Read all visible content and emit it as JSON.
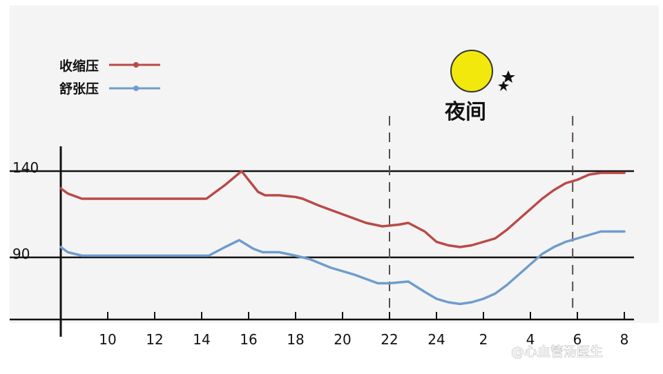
{
  "chart_data": {
    "type": "line",
    "y_ticks": [
      90,
      140
    ],
    "x_tick_labels": [
      "10",
      "12",
      "14",
      "16",
      "18",
      "20",
      "22",
      "24",
      "2",
      "4",
      "6",
      "8"
    ],
    "x_ticks_at": [
      10,
      12,
      14,
      16,
      18,
      20,
      22,
      24,
      26,
      28,
      30,
      32
    ],
    "xlim": [
      8,
      32
    ],
    "ylim": [
      55,
      155
    ],
    "reference_lines": [
      90,
      140
    ],
    "night_markers": [
      22,
      29.8
    ],
    "night_label": "夜间",
    "legend_position": "top-left",
    "series": [
      {
        "name": "收缩压",
        "color": "#b94a48",
        "x": [
          8,
          8.3,
          8.9,
          10,
          12,
          14,
          14.2,
          15,
          15.7,
          16.4,
          16.7,
          17.3,
          18,
          18.3,
          19,
          20,
          21,
          21.7,
          22.4,
          22.8,
          23.5,
          24,
          24.5,
          25,
          25.5,
          26,
          26.5,
          27,
          27.5,
          28,
          28.5,
          29,
          29.5,
          30,
          30.5,
          31,
          31.5,
          32
        ],
        "values": [
          130,
          127,
          124,
          124,
          124,
          124,
          124,
          132,
          140,
          128,
          126,
          126,
          125,
          124,
          120,
          115,
          110,
          108,
          109,
          110,
          105,
          99,
          97,
          96,
          97,
          99,
          101,
          106,
          112,
          118,
          124,
          129,
          133,
          135,
          138,
          139,
          139,
          139
        ]
      },
      {
        "name": "舒张压",
        "color": "#6f9ccc",
        "x": [
          8,
          8.3,
          8.9,
          10,
          12,
          14,
          14.3,
          15,
          15.6,
          16.2,
          16.6,
          17.3,
          18,
          18.6,
          19.5,
          20.5,
          21.5,
          22,
          22.8,
          23.5,
          24,
          24.5,
          25,
          25.5,
          26,
          26.5,
          27,
          27.5,
          28,
          28.5,
          29,
          29.5,
          30,
          30.5,
          31,
          31.5,
          32
        ],
        "values": [
          96,
          93,
          91,
          91,
          91,
          91,
          91,
          96,
          100,
          95,
          93,
          93,
          91,
          89,
          84,
          80,
          75,
          75,
          76,
          70,
          66,
          64,
          63,
          64,
          66,
          69,
          74,
          80,
          86,
          92,
          96,
          99,
          101,
          103,
          105,
          105,
          105
        ]
      }
    ]
  },
  "watermark_text": "@心血管汤医生",
  "colors": {
    "sun_fill": "#f3e80c",
    "sun_stroke": "#333333",
    "axis": "#111111",
    "night_marker": "#5a4a4a"
  }
}
